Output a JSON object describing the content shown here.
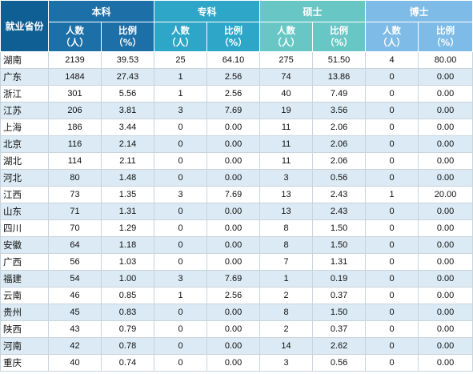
{
  "header": {
    "province": "就业省份",
    "groups": [
      "本科",
      "专科",
      "硕士",
      "博士"
    ],
    "sub_headers": [
      {
        "label": "人数",
        "unit": "（人）"
      },
      {
        "label": "比例",
        "unit": "（%）"
      },
      {
        "label": "人数",
        "unit": "（人）"
      },
      {
        "label": "比例",
        "unit": "（%）"
      },
      {
        "label": "人数",
        "unit": "（人）"
      },
      {
        "label": "比例",
        "unit": "（%）"
      },
      {
        "label": "人数",
        "unit": "（人）"
      },
      {
        "label": "比例",
        "unit": "（%）"
      }
    ]
  },
  "rows": [
    {
      "province": "湖南",
      "values": [
        "2139",
        "39.53",
        "25",
        "64.10",
        "275",
        "51.50",
        "4",
        "80.00"
      ]
    },
    {
      "province": "广东",
      "values": [
        "1484",
        "27.43",
        "1",
        "2.56",
        "74",
        "13.86",
        "0",
        "0.00"
      ]
    },
    {
      "province": "浙江",
      "values": [
        "301",
        "5.56",
        "1",
        "2.56",
        "40",
        "7.49",
        "0",
        "0.00"
      ]
    },
    {
      "province": "江苏",
      "values": [
        "206",
        "3.81",
        "3",
        "7.69",
        "19",
        "3.56",
        "0",
        "0.00"
      ]
    },
    {
      "province": "上海",
      "values": [
        "186",
        "3.44",
        "0",
        "0.00",
        "11",
        "2.06",
        "0",
        "0.00"
      ]
    },
    {
      "province": "北京",
      "values": [
        "116",
        "2.14",
        "0",
        "0.00",
        "11",
        "2.06",
        "0",
        "0.00"
      ]
    },
    {
      "province": "湖北",
      "values": [
        "114",
        "2.11",
        "0",
        "0.00",
        "11",
        "2.06",
        "0",
        "0.00"
      ]
    },
    {
      "province": "河北",
      "values": [
        "80",
        "1.48",
        "0",
        "0.00",
        "3",
        "0.56",
        "0",
        "0.00"
      ]
    },
    {
      "province": "江西",
      "values": [
        "73",
        "1.35",
        "3",
        "7.69",
        "13",
        "2.43",
        "1",
        "20.00"
      ]
    },
    {
      "province": "山东",
      "values": [
        "71",
        "1.31",
        "0",
        "0.00",
        "13",
        "2.43",
        "0",
        "0.00"
      ]
    },
    {
      "province": "四川",
      "values": [
        "70",
        "1.29",
        "0",
        "0.00",
        "8",
        "1.50",
        "0",
        "0.00"
      ]
    },
    {
      "province": "安徽",
      "values": [
        "64",
        "1.18",
        "0",
        "0.00",
        "8",
        "1.50",
        "0",
        "0.00"
      ]
    },
    {
      "province": "广西",
      "values": [
        "56",
        "1.03",
        "0",
        "0.00",
        "7",
        "1.31",
        "0",
        "0.00"
      ]
    },
    {
      "province": "福建",
      "values": [
        "54",
        "1.00",
        "3",
        "7.69",
        "1",
        "0.19",
        "0",
        "0.00"
      ]
    },
    {
      "province": "云南",
      "values": [
        "46",
        "0.85",
        "1",
        "2.56",
        "2",
        "0.37",
        "0",
        "0.00"
      ]
    },
    {
      "province": "贵州",
      "values": [
        "45",
        "0.83",
        "0",
        "0.00",
        "8",
        "1.50",
        "0",
        "0.00"
      ]
    },
    {
      "province": "陕西",
      "values": [
        "43",
        "0.79",
        "0",
        "0.00",
        "2",
        "0.37",
        "0",
        "0.00"
      ]
    },
    {
      "province": "河南",
      "values": [
        "42",
        "0.78",
        "0",
        "0.00",
        "14",
        "2.62",
        "0",
        "0.00"
      ]
    },
    {
      "province": "重庆",
      "values": [
        "40",
        "0.74",
        "0",
        "0.00",
        "3",
        "0.56",
        "0",
        "0.00"
      ]
    }
  ]
}
